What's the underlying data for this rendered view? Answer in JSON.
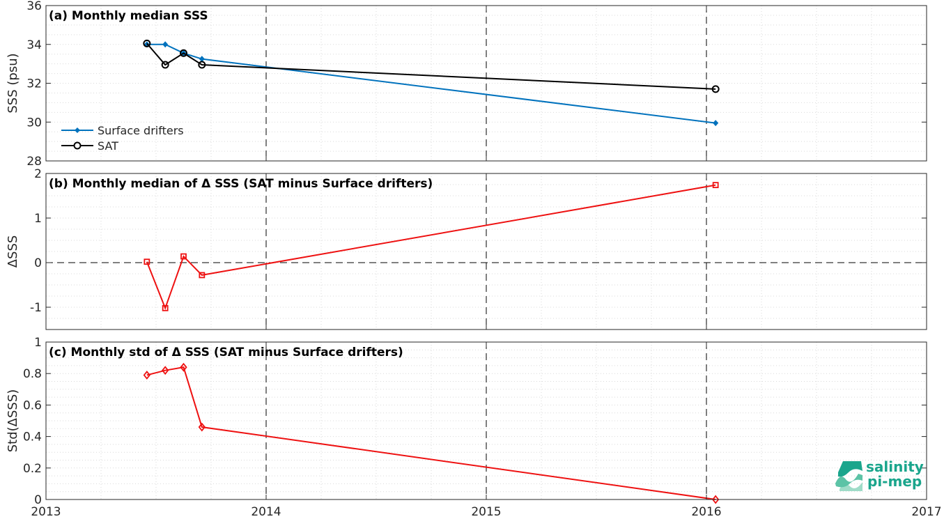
{
  "colors": {
    "drifters": "#0072BD",
    "sat": "#000000",
    "delta": "#EE1111",
    "logo": "#1AA58C"
  },
  "logo": {
    "line1": "salinity",
    "line2": "pi-mep"
  },
  "chart_data": [
    {
      "type": "line",
      "title": "(a) Monthly median SSS",
      "ylabel": "SSS (psu)",
      "xlim": [
        2013,
        2017
      ],
      "ylim": [
        28,
        36
      ],
      "xticks": [
        "2013",
        "2014",
        "2015",
        "2016",
        "2017"
      ],
      "yticks": [
        "28",
        "30",
        "32",
        "34",
        "36"
      ],
      "legend_position": "bottom-left",
      "series": [
        {
          "name": "Surface drifters",
          "marker": "diamond-filled",
          "x": [
            "2013-06",
            "2013-07",
            "2013-08",
            "2013-09",
            "2016-01"
          ],
          "values": [
            34.0,
            34.0,
            33.55,
            33.25,
            29.95
          ]
        },
        {
          "name": "SAT",
          "marker": "circle-open",
          "x": [
            "2013-06",
            "2013-07",
            "2013-08",
            "2013-09",
            "2016-01"
          ],
          "values": [
            34.05,
            32.95,
            33.55,
            32.95,
            31.7
          ]
        }
      ]
    },
    {
      "type": "line",
      "title": "(b) Monthly median of Δ SSS (SAT minus Surface drifters)",
      "ylabel": "ΔSSS",
      "xlim": [
        2013,
        2017
      ],
      "ylim": [
        -1.5,
        2
      ],
      "xticks": [
        "2013",
        "2014",
        "2015",
        "2016",
        "2017"
      ],
      "yticks": [
        "-1",
        "0",
        "1",
        "2"
      ],
      "series": [
        {
          "marker": "square-open",
          "x": [
            "2013-06",
            "2013-07",
            "2013-08",
            "2013-09",
            "2016-01"
          ],
          "values": [
            0.02,
            -1.02,
            0.14,
            -0.28,
            1.74
          ]
        }
      ]
    },
    {
      "type": "line",
      "title": "(c) Monthly std of Δ SSS (SAT minus Surface drifters)",
      "ylabel": "Std(ΔSSS)",
      "xlim": [
        2013,
        2017
      ],
      "ylim": [
        0,
        1
      ],
      "xticks": [
        "2013",
        "2014",
        "2015",
        "2016",
        "2017"
      ],
      "yticks": [
        "0",
        "0.2",
        "0.4",
        "0.6",
        "0.8",
        "1"
      ],
      "series": [
        {
          "marker": "diamond-open",
          "x": [
            "2013-06",
            "2013-07",
            "2013-08",
            "2013-09",
            "2016-01"
          ],
          "values": [
            0.79,
            0.82,
            0.84,
            0.46,
            0.0
          ]
        }
      ]
    }
  ]
}
